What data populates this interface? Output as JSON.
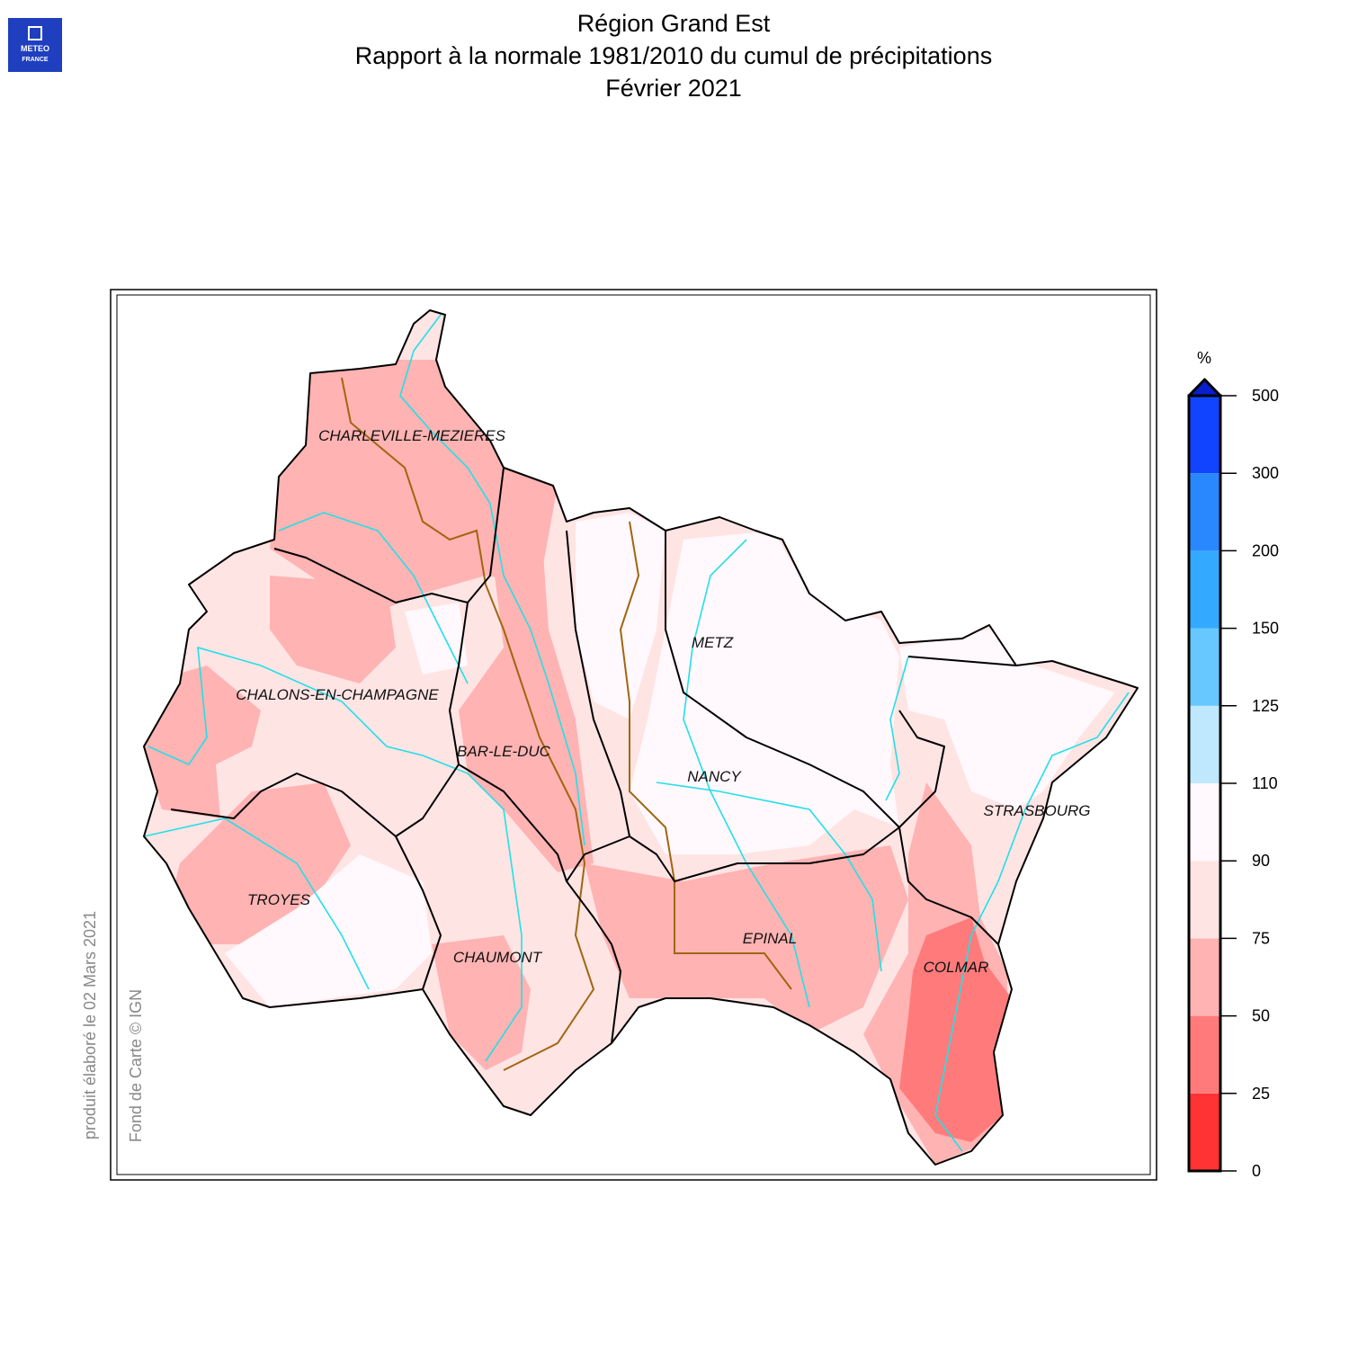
{
  "header": {
    "title_lines": [
      "Région Grand Est",
      "Rapport à la normale 1981/2010 du cumul de précipitations",
      "Février 2021"
    ]
  },
  "logo": [
    "METEO",
    "FRANCE"
  ],
  "cities": [
    "CHARLEVILLE-MEZIERES",
    "CHALONS-EN-CHAMPAGNE",
    "BAR-LE-DUC",
    "METZ",
    "NANCY",
    "STRASBOURG",
    "TROYES",
    "CHAUMONT",
    "EPINAL",
    "COLMAR"
  ],
  "legend": {
    "unit": "%",
    "ticks": [
      0,
      25,
      50,
      75,
      90,
      110,
      125,
      150,
      200,
      300,
      500
    ],
    "colors": [
      "#ff3333",
      "#ff7b7b",
      "#ffb3b3",
      "#ffe4e4",
      "#fff8fc",
      "#bfe8ff",
      "#66c8ff",
      "#33aaff",
      "#2a88ff",
      "#1144ff"
    ],
    "over_color": "#0a1fcc"
  },
  "footer": {
    "produced": "produit élaboré le 02 Mars 2021",
    "credit": "Fond de Carte © IGN"
  }
}
